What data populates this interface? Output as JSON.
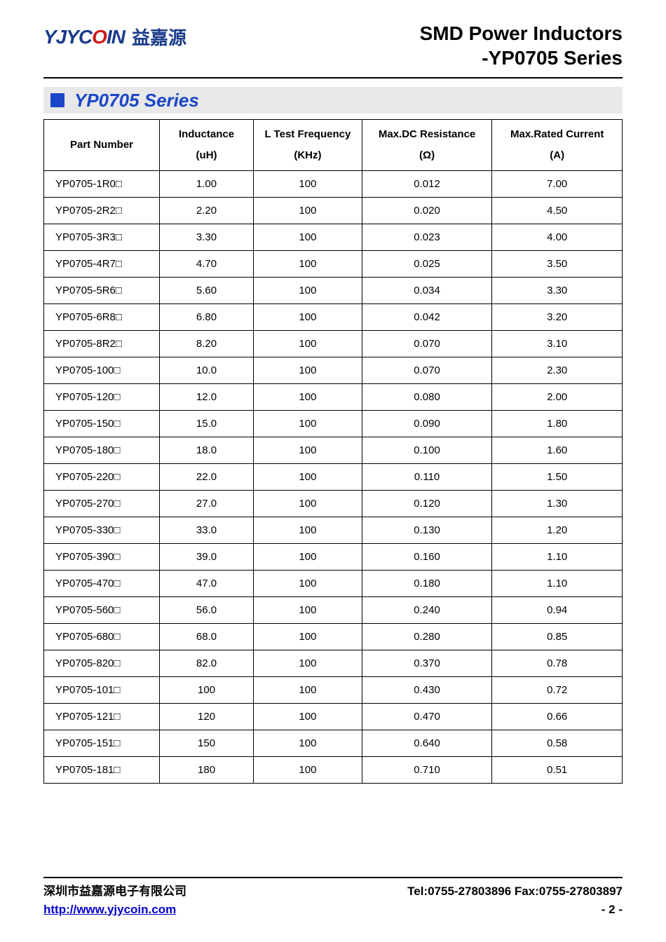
{
  "logo": {
    "mark_pre": "YJYC",
    "mark_red": "O",
    "mark_post": "IN",
    "cn": "益嘉源"
  },
  "header": {
    "line1": "SMD Power Inductors",
    "line2": "-YP0705 Series"
  },
  "series_bar": {
    "label": "YP0705 Series",
    "square_color": "#1a46c8",
    "bg_color": "#e8e8e8"
  },
  "table": {
    "headers": {
      "pn": "Part Number",
      "ind_l1": "Inductance",
      "ind_l2": "(uH)",
      "freq_l1": "L Test Frequency",
      "freq_l2": "(KHz)",
      "dcr_l1": "Max.DC Resistance",
      "dcr_l2": "(Ω)",
      "cur_l1": "Max.Rated Current",
      "cur_l2": "(A)"
    },
    "col_widths": {
      "pn": 160,
      "ind": 130,
      "freq": 150,
      "dcr": 180,
      "cur": 180
    },
    "font_size": 15,
    "rows": [
      {
        "pn": "YP0705-1R0□",
        "ind": "1.00",
        "freq": "100",
        "dcr": "0.012",
        "cur": "7.00"
      },
      {
        "pn": "YP0705-2R2□",
        "ind": "2.20",
        "freq": "100",
        "dcr": "0.020",
        "cur": "4.50"
      },
      {
        "pn": "YP0705-3R3□",
        "ind": "3.30",
        "freq": "100",
        "dcr": "0.023",
        "cur": "4.00"
      },
      {
        "pn": "YP0705-4R7□",
        "ind": "4.70",
        "freq": "100",
        "dcr": "0.025",
        "cur": "3.50"
      },
      {
        "pn": "YP0705-5R6□",
        "ind": "5.60",
        "freq": "100",
        "dcr": "0.034",
        "cur": "3.30"
      },
      {
        "pn": "YP0705-6R8□",
        "ind": "6.80",
        "freq": "100",
        "dcr": "0.042",
        "cur": "3.20"
      },
      {
        "pn": "YP0705-8R2□",
        "ind": "8.20",
        "freq": "100",
        "dcr": "0.070",
        "cur": "3.10"
      },
      {
        "pn": "YP0705-100□",
        "ind": "10.0",
        "freq": "100",
        "dcr": "0.070",
        "cur": "2.30"
      },
      {
        "pn": "YP0705-120□",
        "ind": "12.0",
        "freq": "100",
        "dcr": "0.080",
        "cur": "2.00"
      },
      {
        "pn": "YP0705-150□",
        "ind": "15.0",
        "freq": "100",
        "dcr": "0.090",
        "cur": "1.80"
      },
      {
        "pn": "YP0705-180□",
        "ind": "18.0",
        "freq": "100",
        "dcr": "0.100",
        "cur": "1.60"
      },
      {
        "pn": "YP0705-220□",
        "ind": "22.0",
        "freq": "100",
        "dcr": "0.110",
        "cur": "1.50"
      },
      {
        "pn": "YP0705-270□",
        "ind": "27.0",
        "freq": "100",
        "dcr": "0.120",
        "cur": "1.30"
      },
      {
        "pn": "YP0705-330□",
        "ind": "33.0",
        "freq": "100",
        "dcr": "0.130",
        "cur": "1.20"
      },
      {
        "pn": "YP0705-390□",
        "ind": "39.0",
        "freq": "100",
        "dcr": "0.160",
        "cur": "1.10"
      },
      {
        "pn": "YP0705-470□",
        "ind": "47.0",
        "freq": "100",
        "dcr": "0.180",
        "cur": "1.10"
      },
      {
        "pn": "YP0705-560□",
        "ind": "56.0",
        "freq": "100",
        "dcr": "0.240",
        "cur": "0.94"
      },
      {
        "pn": "YP0705-680□",
        "ind": "68.0",
        "freq": "100",
        "dcr": "0.280",
        "cur": "0.85"
      },
      {
        "pn": "YP0705-820□",
        "ind": "82.0",
        "freq": "100",
        "dcr": "0.370",
        "cur": "0.78"
      },
      {
        "pn": "YP0705-101□",
        "ind": "100",
        "freq": "100",
        "dcr": "0.430",
        "cur": "0.72"
      },
      {
        "pn": "YP0705-121□",
        "ind": "120",
        "freq": "100",
        "dcr": "0.470",
        "cur": "0.66"
      },
      {
        "pn": "YP0705-151□",
        "ind": "150",
        "freq": "100",
        "dcr": "0.640",
        "cur": "0.58"
      },
      {
        "pn": "YP0705-181□",
        "ind": "180",
        "freq": "100",
        "dcr": "0.710",
        "cur": "0.51"
      }
    ]
  },
  "footer": {
    "company": "深圳市益嘉源电子有限公司",
    "contact": "Tel:0755-27803896   Fax:0755-27803897",
    "url": "http://www.yjycoin.com",
    "page": "- 2 -"
  },
  "colors": {
    "text": "#000000",
    "brand_blue": "#1a3a8a",
    "accent_blue": "#1a46c8",
    "link": "#0000cc",
    "red": "#d01818",
    "background": "#ffffff"
  }
}
